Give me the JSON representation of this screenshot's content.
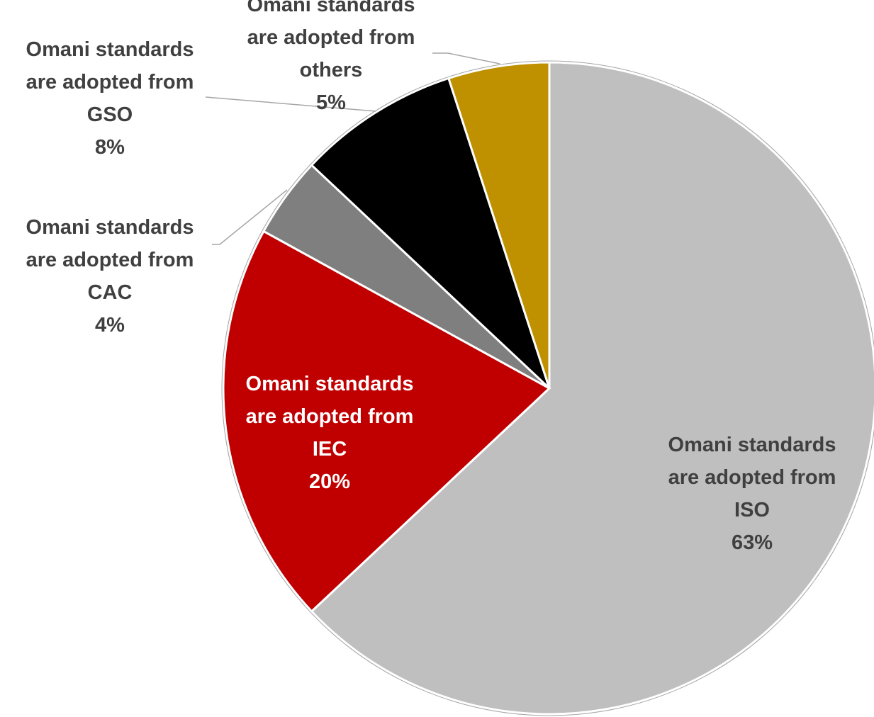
{
  "chart_data": {
    "type": "pie",
    "start_angle_deg": 0,
    "direction": "clockwise",
    "slices": [
      {
        "label_lines": [
          "Omani standards",
          "are adopted from",
          "ISO"
        ],
        "value": 63,
        "value_label": "63%",
        "color": "#bfbfbf",
        "label_color": "#404040"
      },
      {
        "label_lines": [
          "Omani standards",
          "are adopted from",
          "IEC"
        ],
        "value": 20,
        "value_label": "20%",
        "color": "#c00000",
        "label_color": "#ffffff"
      },
      {
        "label_lines": [
          "Omani standards",
          "are adopted from",
          "CAC"
        ],
        "value": 4,
        "value_label": "4%",
        "color": "#7f7f7f",
        "label_color": "#404040"
      },
      {
        "label_lines": [
          "Omani standards",
          "are adopted from",
          "GSO"
        ],
        "value": 8,
        "value_label": "8%",
        "color": "#000000",
        "label_color": "#404040"
      },
      {
        "label_lines": [
          "Omani standards",
          "are adopted from",
          "others"
        ],
        "value": 5,
        "value_label": "5%",
        "color": "#bf9000",
        "label_color": "#404040"
      }
    ]
  }
}
